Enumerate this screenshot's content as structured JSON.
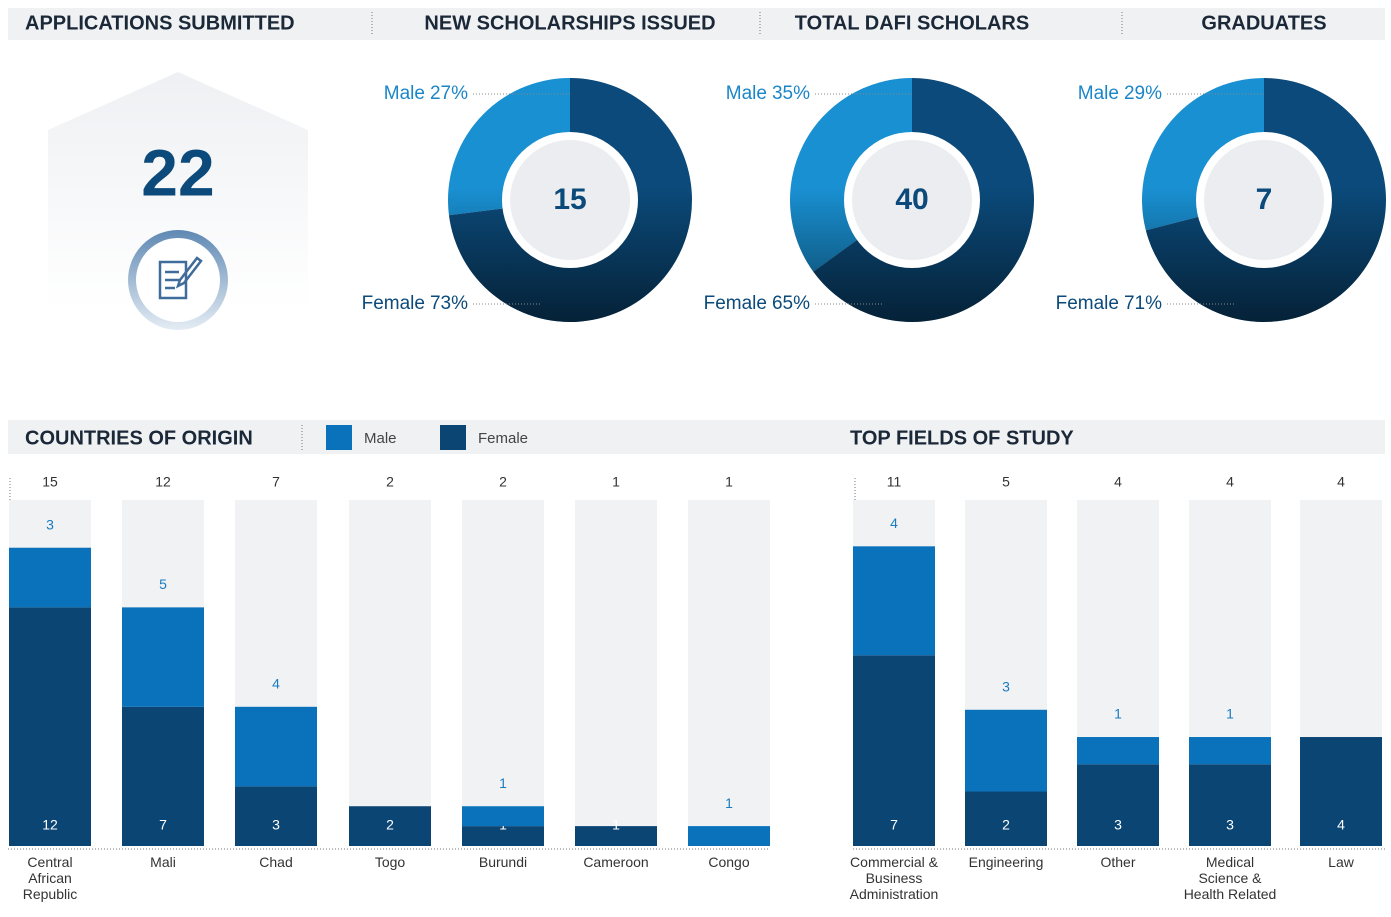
{
  "chart_data": [
    {
      "type": "stat",
      "title": "APPLICATIONS SUBMITTED",
      "value": 22,
      "color": "#0b4a7a"
    },
    {
      "type": "donut",
      "title": "NEW SCHOLARSHIPS ISSUED",
      "total": 15,
      "categories": [
        "Male",
        "Female"
      ],
      "values": [
        27,
        73
      ],
      "value_labels": [
        "27%",
        "73%"
      ],
      "colors": [
        "#1990d2",
        "#0b4a7a"
      ]
    },
    {
      "type": "donut",
      "title": "TOTAL DAFI SCHOLARS",
      "total": 40,
      "categories": [
        "Male",
        "Female"
      ],
      "values": [
        35,
        65
      ],
      "value_labels": [
        "35%",
        "65%"
      ],
      "colors": [
        "#1990d2",
        "#0b4a7a"
      ]
    },
    {
      "type": "donut",
      "title": "GRADUATES",
      "total": 7,
      "categories": [
        "Male",
        "Female"
      ],
      "values": [
        29,
        71
      ],
      "value_labels": [
        "29%",
        "71%"
      ],
      "colors": [
        "#1990d2",
        "#0b4a7a"
      ]
    },
    {
      "type": "bar",
      "stacked": true,
      "title": "COUNTRIES OF ORIGIN",
      "categories": [
        "Central African Republic",
        "Mali",
        "Chad",
        "Togo",
        "Burundi",
        "Cameroon",
        "Congo"
      ],
      "totals": [
        15,
        12,
        7,
        2,
        2,
        1,
        1
      ],
      "series": [
        {
          "name": "Female",
          "color": "#0b4574",
          "values": [
            12,
            7,
            3,
            2,
            1,
            1,
            0
          ]
        },
        {
          "name": "Male",
          "color": "#0a72bb",
          "values": [
            3,
            5,
            4,
            0,
            1,
            0,
            1
          ]
        }
      ],
      "ylim": [
        0,
        17.4
      ],
      "legend": "top"
    },
    {
      "type": "bar",
      "stacked": true,
      "title": "TOP FIELDS OF STUDY",
      "categories": [
        "Commercial & Business Administration",
        "Engineering",
        "Other",
        "Medical Science & Health Related",
        "Law"
      ],
      "totals": [
        11,
        5,
        4,
        4,
        4
      ],
      "series": [
        {
          "name": "Female",
          "color": "#0b4574",
          "values": [
            7,
            2,
            3,
            3,
            4
          ]
        },
        {
          "name": "Male",
          "color": "#0a72bb",
          "values": [
            4,
            3,
            1,
            1,
            0
          ]
        }
      ],
      "ylim": [
        0,
        12.7
      ]
    }
  ]
}
